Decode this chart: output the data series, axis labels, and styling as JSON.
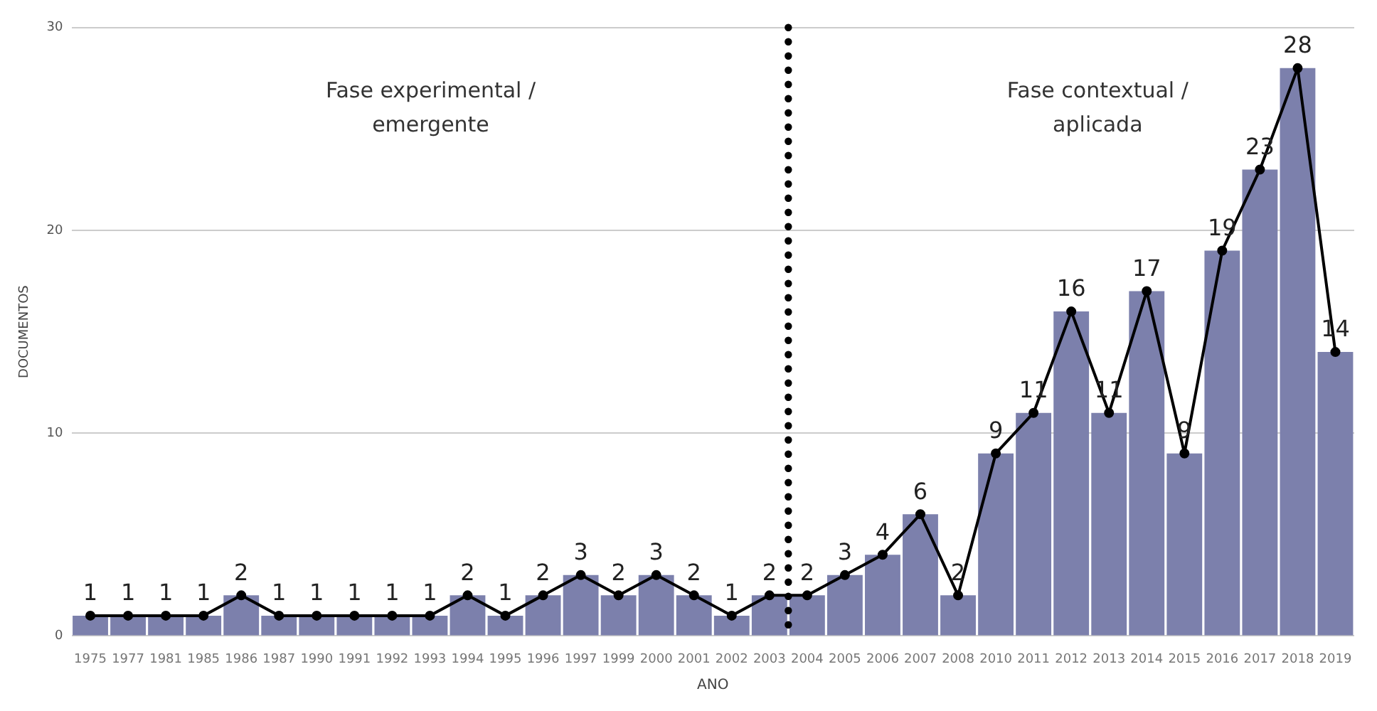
{
  "chart_data": {
    "type": "bar",
    "xlabel": "ANO",
    "ylabel": "DOCUMENTOS",
    "categories": [
      "1975",
      "1977",
      "1981",
      "1985",
      "1986",
      "1987",
      "1990",
      "1991",
      "1992",
      "1993",
      "1994",
      "1995",
      "1996",
      "1997",
      "1999",
      "2000",
      "2001",
      "2002",
      "2003",
      "2004",
      "2005",
      "2006",
      "2007",
      "2008",
      "2010",
      "2011",
      "2012",
      "2013",
      "2014",
      "2015",
      "2016",
      "2017",
      "2018",
      "2019"
    ],
    "series": [
      {
        "color": "#7c80ac",
        "values": [
          1,
          1,
          1,
          1,
          2,
          1,
          1,
          1,
          1,
          1,
          2,
          1,
          2,
          3,
          2,
          3,
          2,
          1,
          2,
          2,
          3,
          4,
          6,
          2,
          9,
          11,
          16,
          11,
          17,
          9,
          19,
          23,
          28,
          14
        ],
        "value_labels": [
          "1",
          "1",
          "1",
          "1",
          "2",
          "1",
          "1",
          "1",
          "1",
          "1",
          "2",
          "1",
          "2",
          "3",
          "2",
          "3",
          "2",
          "1",
          "2",
          "2",
          "3",
          "4",
          "6",
          "2",
          "9",
          "11",
          "16",
          "11",
          "17",
          "9",
          "19",
          "23",
          "28",
          "14"
        ]
      },
      {
        "type": "line",
        "color": "#000000",
        "marker": "circle",
        "values": [
          1,
          1,
          1,
          1,
          2,
          1,
          1,
          1,
          1,
          1,
          2,
          1,
          2,
          3,
          2,
          3,
          2,
          1,
          2,
          2,
          3,
          4,
          6,
          2,
          9,
          11,
          16,
          11,
          17,
          9,
          19,
          23,
          28,
          14
        ]
      }
    ],
    "ylim": [
      0,
      30
    ],
    "yticks": [
      0,
      10,
      20,
      30
    ],
    "grid": "y",
    "legend": false,
    "ref_lines": [
      {
        "axis": "x",
        "value": "2004",
        "line_style": "dotted",
        "color": "#000000"
      }
    ],
    "annotations": [
      "Fase experimental / emergente",
      "Fase contextual / aplicada"
    ]
  }
}
